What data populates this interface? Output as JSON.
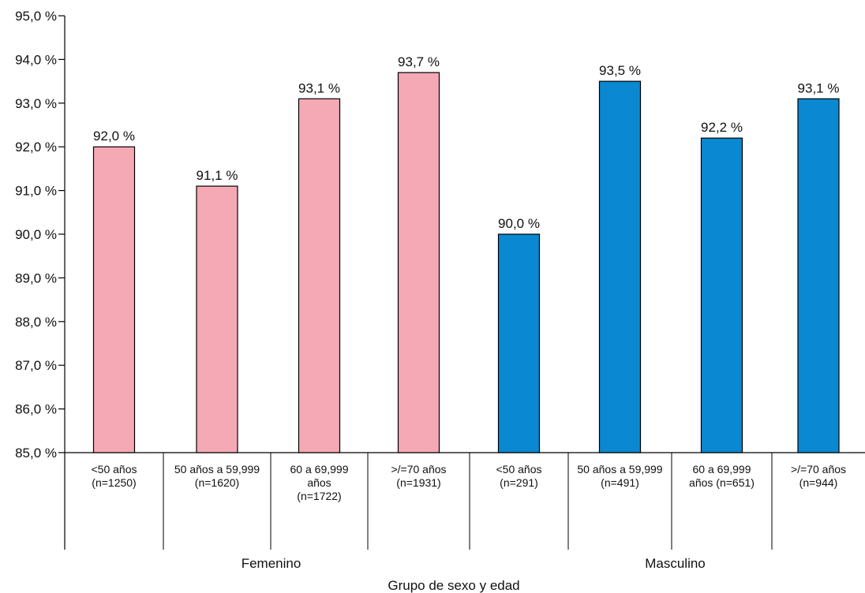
{
  "chart_data": {
    "type": "bar",
    "xlabel": "Grupo de sexo y edad",
    "ylabel": "",
    "ylim": [
      85,
      95
    ],
    "yticks": [
      "85,0 %",
      "86,0 %",
      "87,0 %",
      "88,0 %",
      "89,0 %",
      "90,0 %",
      "91,0 %",
      "92,0 %",
      "93,0 %",
      "94,0 %",
      "95,0 %"
    ],
    "categories": [
      [
        "<50 años",
        "(n=1250)"
      ],
      [
        "50 años a 59,999",
        "(n=1620)"
      ],
      [
        "60 a 69,999",
        "años",
        "(n=1722)"
      ],
      [
        ">/=70 años",
        "(n=1931)"
      ],
      [
        "<50 años",
        "(n=291)"
      ],
      [
        "50 años a 59,999",
        "(n=491)"
      ],
      [
        "60 a 69,999",
        "años (n=651)"
      ],
      [
        ">/=70 años",
        "(n=944)"
      ]
    ],
    "values": [
      92.0,
      91.1,
      93.1,
      93.7,
      90.0,
      93.5,
      92.2,
      93.1
    ],
    "value_labels": [
      "92,0 %",
      "91,1 %",
      "93,1 %",
      "93,7 %",
      "90,0 %",
      "93,5 %",
      "92,2 %",
      "93,1 %"
    ],
    "groups": [
      {
        "name": "Femenino",
        "color": "#f4a9b5"
      },
      {
        "name": "Masculino",
        "color": "#0a88d1"
      }
    ],
    "bar_groups": [
      0,
      0,
      0,
      0,
      1,
      1,
      1,
      1
    ],
    "grid": false
  }
}
